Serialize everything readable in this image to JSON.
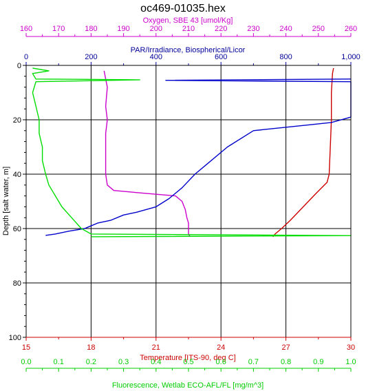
{
  "chart_data": {
    "type": "line",
    "title": "oc469-01035.hex",
    "ylabel": "Depth [salt water, m]",
    "ylim": [
      0,
      100
    ],
    "y_reversed": true,
    "y_ticks": [
      0,
      20,
      40,
      60,
      80,
      100
    ],
    "grid": true,
    "axes": {
      "top_outer": {
        "label": "Oxygen, SBE 43 [umol/Kg]",
        "range": [
          160,
          260
        ],
        "ticks": [
          160,
          170,
          180,
          190,
          200,
          210,
          220,
          230,
          240,
          250,
          260
        ],
        "color": "#cc00cc"
      },
      "top_inner": {
        "label": "PAR/Irradiance, Biospherical/Licor",
        "range": [
          0,
          1000
        ],
        "ticks": [
          "0",
          "200",
          "400",
          "600",
          "800",
          "1,000"
        ],
        "color": "#000099"
      },
      "bottom_inner": {
        "label": "Temperature [ITS-90, deg C]",
        "range": [
          15,
          30
        ],
        "ticks": [
          15,
          18,
          21,
          24,
          27,
          30
        ],
        "color": "#cc0000"
      },
      "bottom_outer": {
        "label": "Fluorescence, Wetlab ECO-AFL/FL [mg/m^3]",
        "range": [
          0,
          1
        ],
        "ticks": [
          "0.0",
          "0.1",
          "0.2",
          "0.3",
          "0.4",
          "0.5",
          "0.6",
          "0.7",
          "0.8",
          "0.9",
          "1.0"
        ],
        "color": "#00cc00"
      }
    },
    "series": [
      {
        "name": "Temperature",
        "axis": "bottom_inner",
        "color": "#cc0000",
        "points": [
          [
            29.2,
            1
          ],
          [
            29.15,
            3
          ],
          [
            29.1,
            10
          ],
          [
            29.1,
            20
          ],
          [
            29.05,
            30
          ],
          [
            29.0,
            40
          ],
          [
            28.9,
            43
          ],
          [
            28.4,
            47
          ],
          [
            27.8,
            52
          ],
          [
            27.2,
            57
          ],
          [
            26.8,
            60
          ],
          [
            26.5,
            62
          ],
          [
            26.4,
            63
          ]
        ]
      },
      {
        "name": "Oxygen",
        "axis": "top_outer",
        "color": "#cc00cc",
        "points": [
          [
            184,
            2
          ],
          [
            184.5,
            5
          ],
          [
            185,
            8
          ],
          [
            184.5,
            15
          ],
          [
            185,
            20
          ],
          [
            184.5,
            25
          ],
          [
            184.5,
            30
          ],
          [
            184.5,
            35
          ],
          [
            184.5,
            40
          ],
          [
            185,
            44
          ],
          [
            187,
            46
          ],
          [
            196,
            47
          ],
          [
            206,
            48
          ],
          [
            208,
            50
          ],
          [
            209,
            53
          ],
          [
            209.5,
            56
          ],
          [
            210,
            58
          ],
          [
            210,
            60
          ],
          [
            210,
            62
          ],
          [
            210.5,
            63
          ]
        ]
      },
      {
        "name": "PAR/Irradiance",
        "axis": "top_inner",
        "color": "#0000cc",
        "points": [
          [
            1000,
            5
          ],
          [
            430,
            5.5
          ],
          [
            1000,
            6
          ],
          [
            1000,
            19
          ],
          [
            940,
            21
          ],
          [
            860,
            22
          ],
          [
            700,
            24
          ],
          [
            620,
            30
          ],
          [
            560,
            36
          ],
          [
            520,
            40
          ],
          [
            480,
            45
          ],
          [
            440,
            49
          ],
          [
            400,
            52
          ],
          [
            340,
            54
          ],
          [
            300,
            55
          ],
          [
            260,
            57
          ],
          [
            220,
            58
          ],
          [
            180,
            60
          ],
          [
            130,
            61
          ],
          [
            90,
            62
          ],
          [
            60,
            62.5
          ]
        ]
      },
      {
        "name": "Fluorescence",
        "axis": "bottom_outer",
        "color": "#00dd00",
        "points": [
          [
            0.02,
            1
          ],
          [
            0.07,
            2
          ],
          [
            0.02,
            3
          ],
          [
            0.03,
            5
          ],
          [
            0.35,
            5.3
          ],
          [
            0.03,
            6
          ],
          [
            0.02,
            10
          ],
          [
            0.03,
            15
          ],
          [
            0.04,
            20
          ],
          [
            0.04,
            25
          ],
          [
            0.05,
            30
          ],
          [
            0.05,
            35
          ],
          [
            0.06,
            40
          ],
          [
            0.07,
            44
          ],
          [
            0.09,
            48
          ],
          [
            0.11,
            52
          ],
          [
            0.14,
            56
          ],
          [
            0.17,
            60
          ],
          [
            0.2,
            62
          ],
          [
            1.0,
            62.6
          ],
          [
            0.2,
            63
          ]
        ]
      }
    ]
  }
}
